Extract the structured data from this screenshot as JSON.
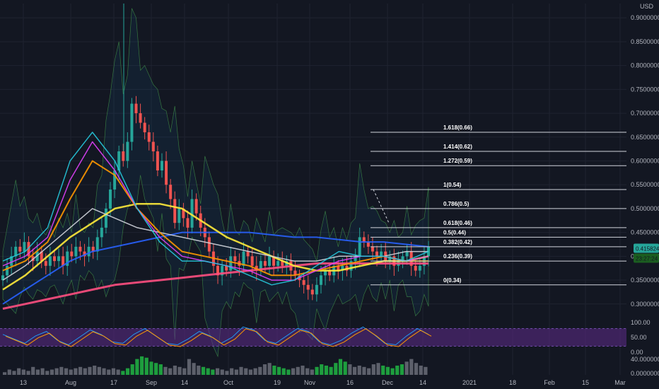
{
  "chart_data": {
    "type": "candlestick",
    "currency": "USD",
    "colors": {
      "background": "#131722",
      "grid": "#1f2330",
      "up": "#26a69a",
      "down": "#ef5350",
      "fib_line": "#d1d4dc",
      "badge_price": "#26a69a",
      "badge_timer": "#1b5e20",
      "rsi_band": "#5e2b8a",
      "volume_up": "#1e9e3e",
      "volume_neutral": "#5d606b"
    },
    "price_axis": {
      "ylim": [
        0.27,
        0.93
      ],
      "ticks": [
        "0.90000000",
        "0.85000000",
        "0.80000000",
        "0.75000000",
        "0.70000000",
        "0.65000000",
        "0.60000000",
        "0.55000000",
        "0.50000000",
        "0.45000000",
        "0.40000000",
        "0.35000000",
        "0.30000000"
      ],
      "tick_values": [
        0.9,
        0.85,
        0.8,
        0.75,
        0.7,
        0.65,
        0.6,
        0.55,
        0.5,
        0.45,
        0.4,
        0.35,
        0.3
      ]
    },
    "current_price": "0.41582449",
    "countdown": "23:27:24",
    "rsi_axis": {
      "ticks": [
        "100.00",
        "50.00",
        "0.00"
      ],
      "tick_values": [
        100,
        50,
        0
      ]
    },
    "volume_axis": {
      "ticks": [
        "40.00000000",
        "0.00000000"
      ]
    },
    "x_axis": {
      "labels": [
        "13",
        "Aug",
        "17",
        "Sep",
        "14",
        "Oct",
        "19",
        "Nov",
        "16",
        "Dec",
        "14",
        "2021",
        "18",
        "Feb",
        "15",
        "Mar"
      ]
    },
    "fib_levels": [
      {
        "label": "1.618(0.66)",
        "value": 0.66
      },
      {
        "label": "1.414(0.62)",
        "value": 0.62
      },
      {
        "label": "1.272(0.59)",
        "value": 0.59
      },
      {
        "label": "1(0.54)",
        "value": 0.54
      },
      {
        "label": "0.786(0.5)",
        "value": 0.5
      },
      {
        "label": "0.618(0.46)",
        "value": 0.46
      },
      {
        "label": "0.5(0.44)",
        "value": 0.44
      },
      {
        "label": "0.382(0.42)",
        "value": 0.42
      },
      {
        "label": "0.236(0.39)",
        "value": 0.39
      },
      {
        "label": "0(0.34)",
        "value": 0.34
      }
    ],
    "price_path": [
      0.36,
      0.38,
      0.4,
      0.42,
      0.41,
      0.43,
      0.4,
      0.39,
      0.41,
      0.39,
      0.38,
      0.4,
      0.39,
      0.4,
      0.38,
      0.41,
      0.4,
      0.42,
      0.41,
      0.4,
      0.42,
      0.41,
      0.44,
      0.46,
      0.5,
      0.54,
      0.58,
      0.62,
      0.6,
      0.64,
      0.72,
      0.7,
      0.68,
      0.66,
      0.64,
      0.62,
      0.58,
      0.6,
      0.55,
      0.52,
      0.47,
      0.5,
      0.48,
      0.46,
      0.52,
      0.49,
      0.46,
      0.44,
      0.41,
      0.38,
      0.36,
      0.38,
      0.37,
      0.4,
      0.39,
      0.38,
      0.41,
      0.4,
      0.38,
      0.37,
      0.39,
      0.38,
      0.4,
      0.38,
      0.39,
      0.38,
      0.39,
      0.37,
      0.36,
      0.35,
      0.34,
      0.33,
      0.32,
      0.34,
      0.36,
      0.37,
      0.36,
      0.38,
      0.37,
      0.38,
      0.37,
      0.39,
      0.4,
      0.44,
      0.43,
      0.42,
      0.41,
      0.4,
      0.41,
      0.39,
      0.4,
      0.38,
      0.39,
      0.4,
      0.41,
      0.38,
      0.37,
      0.38,
      0.4,
      0.42
    ],
    "ma_lines": [
      {
        "color": "#ff4f81",
        "width": 3,
        "values": [
          0.29,
          0.3,
          0.31,
          0.32,
          0.33,
          0.34,
          0.345,
          0.35,
          0.355,
          0.36,
          0.365,
          0.37,
          0.375,
          0.38,
          0.385,
          0.385,
          0.385,
          0.385,
          0.385,
          0.385
        ]
      },
      {
        "color": "#2962ff",
        "width": 2,
        "values": [
          0.3,
          0.33,
          0.36,
          0.39,
          0.41,
          0.42,
          0.43,
          0.44,
          0.45,
          0.45,
          0.45,
          0.45,
          0.445,
          0.44,
          0.44,
          0.435,
          0.43,
          0.43,
          0.425,
          0.42
        ]
      },
      {
        "color": "#ffeb3b",
        "width": 2.5,
        "values": [
          0.33,
          0.36,
          0.4,
          0.44,
          0.47,
          0.5,
          0.51,
          0.51,
          0.5,
          0.47,
          0.44,
          0.42,
          0.4,
          0.38,
          0.37,
          0.37,
          0.38,
          0.39,
          0.39,
          0.4
        ]
      },
      {
        "color": "#d1d4dc",
        "width": 1.5,
        "values": [
          0.35,
          0.38,
          0.42,
          0.46,
          0.5,
          0.48,
          0.46,
          0.45,
          0.44,
          0.43,
          0.42,
          0.41,
          0.4,
          0.39,
          0.39,
          0.4,
          0.4,
          0.4,
          0.41,
          0.41
        ]
      },
      {
        "color": "#ff9800",
        "width": 2,
        "values": [
          0.37,
          0.39,
          0.43,
          0.52,
          0.6,
          0.57,
          0.5,
          0.45,
          0.41,
          0.4,
          0.39,
          0.38,
          0.36,
          0.36,
          0.37,
          0.38,
          0.39,
          0.4,
          0.39,
          0.39
        ]
      },
      {
        "color": "#e040fb",
        "width": 1.5,
        "values": [
          0.38,
          0.4,
          0.44,
          0.56,
          0.64,
          0.58,
          0.5,
          0.44,
          0.4,
          0.39,
          0.38,
          0.37,
          0.35,
          0.35,
          0.37,
          0.39,
          0.4,
          0.4,
          0.39,
          0.4
        ]
      },
      {
        "color": "#26c6da",
        "width": 1.5,
        "values": [
          0.39,
          0.41,
          0.46,
          0.6,
          0.66,
          0.6,
          0.5,
          0.43,
          0.39,
          0.39,
          0.38,
          0.36,
          0.34,
          0.35,
          0.38,
          0.41,
          0.4,
          0.4,
          0.39,
          0.41
        ]
      }
    ],
    "rsi_values": [
      60,
      45,
      30,
      55,
      70,
      40,
      25,
      50,
      75,
      60,
      35,
      30,
      60,
      80,
      55,
      30,
      25,
      45,
      70,
      55,
      30,
      50,
      85,
      75,
      40,
      30,
      55,
      80,
      70,
      35,
      25,
      40,
      65,
      85,
      60,
      30,
      25,
      55,
      80,
      60
    ],
    "volume_values": [
      2,
      4,
      3,
      5,
      4,
      3,
      6,
      4,
      5,
      3,
      4,
      5,
      6,
      5,
      4,
      5,
      6,
      5,
      6,
      7,
      6,
      5,
      4,
      5,
      4,
      3,
      5,
      8,
      12,
      14,
      13,
      10,
      9,
      8,
      6,
      5,
      7,
      6,
      5,
      12,
      9,
      7,
      6,
      5,
      4,
      5,
      4,
      3,
      5,
      4,
      6,
      5,
      4,
      5,
      6,
      8,
      9,
      7,
      6,
      5,
      4,
      5,
      6,
      7,
      5,
      4,
      6,
      8,
      7,
      6,
      9,
      12,
      10,
      8,
      6,
      7,
      6,
      5,
      8,
      9,
      7,
      6,
      5,
      7,
      8,
      10,
      12,
      9,
      7,
      6
    ],
    "volume_green_ranges": [
      [
        25,
        33
      ],
      [
        42,
        44
      ],
      [
        57,
        60
      ],
      [
        66,
        72
      ],
      [
        80,
        84
      ]
    ]
  }
}
